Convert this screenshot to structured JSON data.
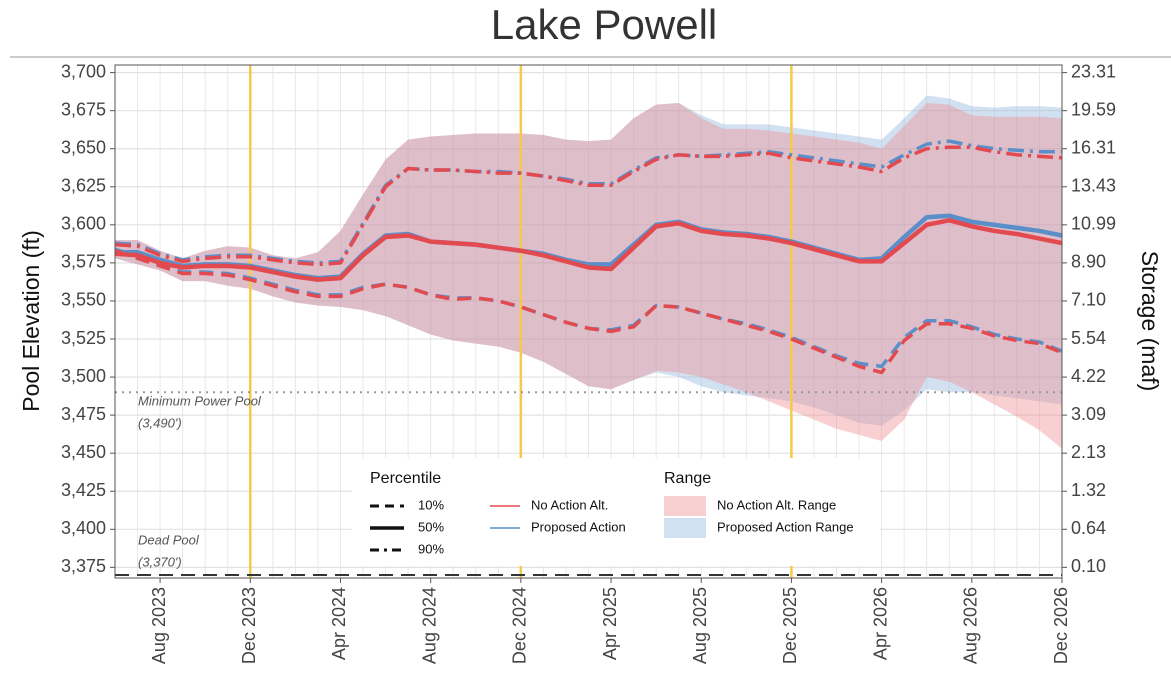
{
  "chart_data": {
    "type": "line",
    "title": "Lake Powell",
    "ylabel": "Pool Elevation (ft)",
    "y2label": "Storage (maf)",
    "x": [
      "2023-06",
      "2023-07",
      "2023-08",
      "2023-09",
      "2023-10",
      "2023-11",
      "2023-12",
      "2024-01",
      "2024-02",
      "2024-03",
      "2024-04",
      "2024-05",
      "2024-06",
      "2024-07",
      "2024-08",
      "2024-09",
      "2024-10",
      "2024-11",
      "2024-12",
      "2025-01",
      "2025-02",
      "2025-03",
      "2025-04",
      "2025-05",
      "2025-06",
      "2025-07",
      "2025-08",
      "2025-09",
      "2025-10",
      "2025-11",
      "2025-12",
      "2026-01",
      "2026-02",
      "2026-03",
      "2026-04",
      "2026-05",
      "2026-06",
      "2026-07",
      "2026-08",
      "2026-09",
      "2026-10",
      "2026-11",
      "2026-12"
    ],
    "xlim": [
      "2023-06",
      "2026-12"
    ],
    "xticks": [
      {
        "value": "2023-08",
        "label": "Aug 2023"
      },
      {
        "value": "2023-12",
        "label": "Dec 2023"
      },
      {
        "value": "2024-04",
        "label": "Apr 2024"
      },
      {
        "value": "2024-08",
        "label": "Aug 2024"
      },
      {
        "value": "2024-12",
        "label": "Dec 2024"
      },
      {
        "value": "2025-04",
        "label": "Apr 2025"
      },
      {
        "value": "2025-08",
        "label": "Aug 2025"
      },
      {
        "value": "2025-12",
        "label": "Dec 2025"
      },
      {
        "value": "2026-04",
        "label": "Apr 2026"
      },
      {
        "value": "2026-08",
        "label": "Aug 2026"
      },
      {
        "value": "2026-12",
        "label": "Dec 2026"
      }
    ],
    "ylim": [
      3368,
      3705
    ],
    "yticks": [
      {
        "value": 3700,
        "label": "3,700"
      },
      {
        "value": 3675,
        "label": "3,675"
      },
      {
        "value": 3650,
        "label": "3,650"
      },
      {
        "value": 3625,
        "label": "3,625"
      },
      {
        "value": 3600,
        "label": "3,600"
      },
      {
        "value": 3575,
        "label": "3,575"
      },
      {
        "value": 3550,
        "label": "3,550"
      },
      {
        "value": 3525,
        "label": "3,525"
      },
      {
        "value": 3500,
        "label": "3,500"
      },
      {
        "value": 3475,
        "label": "3,475"
      },
      {
        "value": 3450,
        "label": "3,450"
      },
      {
        "value": 3425,
        "label": "3,425"
      },
      {
        "value": 3400,
        "label": "3,400"
      },
      {
        "value": 3375,
        "label": "3,375"
      }
    ],
    "y2ticks": [
      23.31,
      19.59,
      16.31,
      13.43,
      10.99,
      {
        "value": 8.9,
        "label": "8.90"
      },
      {
        "value": 7.1,
        "label": "7.10"
      },
      5.54,
      4.22,
      3.09,
      2.13,
      1.32,
      0.64,
      {
        "value": 0.1,
        "label": "0.10"
      }
    ],
    "grid": true,
    "legend_titles": {
      "percentile": "Percentile",
      "range": "Range"
    },
    "percentiles": [
      {
        "label": "10%",
        "dash": "dashed"
      },
      {
        "label": "50%",
        "dash": "solid"
      },
      {
        "label": "90%",
        "dash": "dotdash"
      }
    ],
    "series": [
      {
        "name": "No Action Alt.",
        "color": "#e34a4f",
        "values": [
          [
            3583,
            3578,
            3573,
            3568,
            3568,
            3567,
            3564,
            3560,
            3556,
            3553,
            3553,
            3558,
            3561,
            3559,
            3554,
            3551,
            3552,
            3550,
            3546,
            3541,
            3536,
            3532,
            3530,
            3533,
            3547,
            3546,
            3542,
            3538,
            3534,
            3530,
            3525,
            3519,
            3513,
            3507,
            3503,
            3524,
            3535,
            3535,
            3532,
            3527,
            3524,
            3522,
            3516
          ],
          [
            3581,
            3580,
            3575,
            3572,
            3573,
            3573,
            3572,
            3569,
            3566,
            3564,
            3565,
            3580,
            3592,
            3593,
            3589,
            3588,
            3587,
            3585,
            3583,
            3580,
            3576,
            3572,
            3571,
            3585,
            3599,
            3601,
            3596,
            3594,
            3593,
            3591,
            3588,
            3584,
            3580,
            3576,
            3576,
            3588,
            3600,
            3603,
            3599,
            3596,
            3594,
            3591,
            3588
          ],
          [
            3587,
            3586,
            3580,
            3576,
            3578,
            3579,
            3579,
            3577,
            3575,
            3574,
            3575,
            3600,
            3625,
            3637,
            3636,
            3636,
            3635,
            3634,
            3634,
            3632,
            3629,
            3626,
            3626,
            3635,
            3643,
            3646,
            3645,
            3645,
            3646,
            3647,
            3644,
            3642,
            3640,
            3638,
            3635,
            3644,
            3650,
            3651,
            3651,
            3648,
            3646,
            3645,
            3644
          ]
        ]
      },
      {
        "name": "Proposed Action",
        "color": "#5b8fc9",
        "values": [
          [
            3584,
            3579,
            3574,
            3569,
            3569,
            3568,
            3565,
            3561,
            3557,
            3554,
            3554,
            3559,
            3561,
            3559,
            3554,
            3552,
            3552,
            3550,
            3546,
            3541,
            3536,
            3532,
            3531,
            3534,
            3547,
            3546,
            3542,
            3538,
            3535,
            3531,
            3526,
            3520,
            3514,
            3509,
            3507,
            3526,
            3537,
            3537,
            3533,
            3528,
            3525,
            3523,
            3517
          ],
          [
            3582,
            3582,
            3577,
            3573,
            3574,
            3574,
            3573,
            3570,
            3567,
            3565,
            3566,
            3581,
            3593,
            3594,
            3589,
            3588,
            3587,
            3585,
            3583,
            3581,
            3577,
            3574,
            3574,
            3587,
            3600,
            3602,
            3597,
            3595,
            3594,
            3592,
            3589,
            3585,
            3581,
            3577,
            3578,
            3592,
            3605,
            3606,
            3602,
            3600,
            3598,
            3596,
            3593
          ],
          [
            3588,
            3587,
            3581,
            3577,
            3579,
            3580,
            3580,
            3578,
            3576,
            3575,
            3576,
            3601,
            3626,
            3637,
            3636,
            3636,
            3635,
            3635,
            3634,
            3632,
            3630,
            3627,
            3627,
            3636,
            3644,
            3646,
            3645,
            3646,
            3647,
            3648,
            3646,
            3644,
            3642,
            3640,
            3638,
            3646,
            3653,
            3655,
            3652,
            3650,
            3649,
            3648,
            3648
          ]
        ]
      }
    ],
    "ranges": [
      {
        "name": "No Action Alt. Range",
        "color": "#f08a8e",
        "low": [
          3578,
          3574,
          3570,
          3563,
          3563,
          3560,
          3558,
          3553,
          3549,
          3547,
          3546,
          3544,
          3540,
          3534,
          3528,
          3524,
          3522,
          3520,
          3516,
          3510,
          3502,
          3494,
          3492,
          3498,
          3504,
          3503,
          3500,
          3495,
          3490,
          3484,
          3478,
          3472,
          3466,
          3462,
          3458,
          3472,
          3500,
          3497,
          3490,
          3482,
          3474,
          3465,
          3453
        ],
        "high": [
          3590,
          3590,
          3583,
          3578,
          3583,
          3586,
          3585,
          3580,
          3578,
          3582,
          3596,
          3620,
          3643,
          3656,
          3658,
          3659,
          3660,
          3660,
          3660,
          3659,
          3656,
          3655,
          3656,
          3670,
          3679,
          3680,
          3670,
          3663,
          3663,
          3662,
          3660,
          3658,
          3656,
          3654,
          3650,
          3665,
          3680,
          3679,
          3672,
          3671,
          3671,
          3671,
          3670
        ]
      },
      {
        "name": "Proposed Action Range",
        "color": "#8fb3dc",
        "low": [
          3578,
          3574,
          3570,
          3563,
          3563,
          3560,
          3558,
          3553,
          3549,
          3547,
          3546,
          3544,
          3540,
          3534,
          3528,
          3524,
          3522,
          3520,
          3516,
          3510,
          3502,
          3494,
          3492,
          3498,
          3503,
          3500,
          3494,
          3490,
          3488,
          3486,
          3484,
          3480,
          3475,
          3470,
          3468,
          3478,
          3492,
          3490,
          3490,
          3488,
          3486,
          3484,
          3482
        ],
        "high": [
          3590,
          3590,
          3583,
          3578,
          3583,
          3586,
          3585,
          3580,
          3578,
          3582,
          3596,
          3620,
          3643,
          3656,
          3658,
          3659,
          3660,
          3660,
          3660,
          3659,
          3656,
          3655,
          3656,
          3670,
          3679,
          3680,
          3672,
          3666,
          3666,
          3666,
          3664,
          3662,
          3660,
          3658,
          3656,
          3670,
          3685,
          3683,
          3678,
          3677,
          3678,
          3678,
          3677
        ]
      }
    ],
    "hlines": [
      {
        "value": 3490,
        "label": "Minimum Power Pool",
        "note": "(3,490')",
        "style": "dotted",
        "color": "#999999"
      },
      {
        "value": 3370,
        "label": "Dead Pool",
        "note": "(3,370')",
        "style": "dashed",
        "color": "#333333"
      }
    ],
    "vlines": {
      "x": [
        "2023-12",
        "2024-12",
        "2025-12"
      ],
      "color": "#f7c948"
    }
  }
}
